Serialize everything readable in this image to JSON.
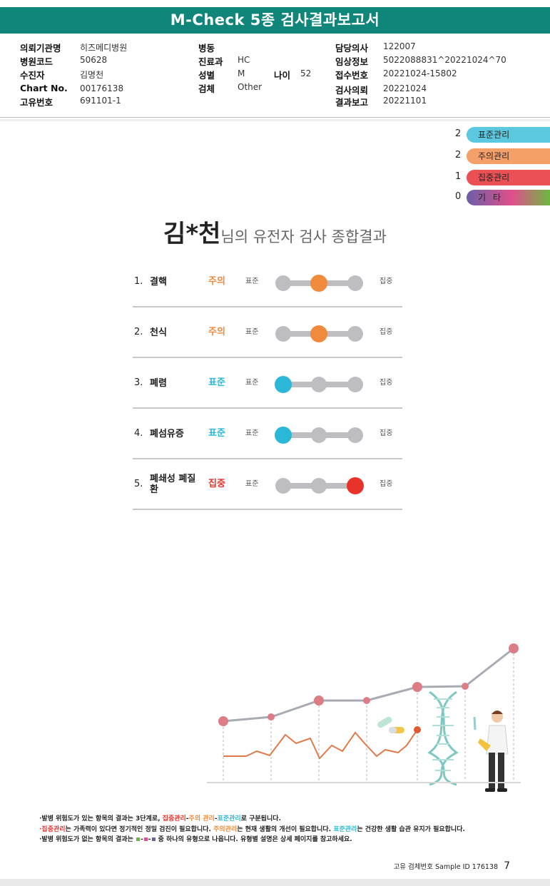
{
  "header": {
    "title": "M-Check 5종 검사결과보고서"
  },
  "info": {
    "col1": [
      {
        "label": "의뢰기관명",
        "value": "히즈메디병원"
      },
      {
        "label": "병원코드",
        "value": "50628"
      },
      {
        "label": "수진자",
        "value": "김명천"
      },
      {
        "label": "Chart No.",
        "value": "00176138"
      },
      {
        "label": "고유번호",
        "value": "691101-1"
      }
    ],
    "col2": [
      {
        "label": "병동",
        "value": ""
      },
      {
        "label": "진료과",
        "value": "HC"
      },
      {
        "label": "성별",
        "value": "M"
      },
      {
        "label": "검체",
        "value": "Other"
      }
    ],
    "age": {
      "label": "나이",
      "value": "52"
    },
    "col3": [
      {
        "label": "담당의사",
        "value": "122007"
      },
      {
        "label": "임상정보",
        "value": "5022088831^20221024^70"
      },
      {
        "label": "접수번호",
        "value": "20221024-15802"
      },
      {
        "label": "검사의뢰",
        "value": "20221024"
      },
      {
        "label": "결과보고",
        "value": "20221101"
      }
    ]
  },
  "legend": [
    {
      "count": "2",
      "label": "표준관리",
      "color": "#5bc8df"
    },
    {
      "count": "2",
      "label": "주의관리",
      "color": "#f5a068"
    },
    {
      "count": "1",
      "label": "집중관리",
      "color": "#ea5054"
    },
    {
      "count": "0",
      "label": "기타",
      "colors": [
        "#6b5ea8",
        "#e0508a",
        "#6cb83f"
      ]
    }
  ],
  "summary": {
    "name": "김*천",
    "rest": "님의 유전자 검사 종합결과"
  },
  "results": [
    {
      "num": "1.",
      "item": "결핵",
      "status": "주의",
      "level": 1
    },
    {
      "num": "2.",
      "item": "천식",
      "status": "주의",
      "level": 1
    },
    {
      "num": "3.",
      "item": "폐렴",
      "status": "표준",
      "level": 0
    },
    {
      "num": "4.",
      "item": "폐섬유증",
      "status": "표준",
      "level": 0
    },
    {
      "num": "5.",
      "item": "폐쇄성 폐질환",
      "status": "집중",
      "level": 2
    }
  ],
  "scale": {
    "low": "표준",
    "high": "집중"
  },
  "colors": {
    "standard": "#2bb8d8",
    "caution": "#f08a3c",
    "focus": "#e8332a",
    "inactive": "#bdbdc2"
  },
  "notes": {
    "l1_a": "·발병 위험도가 있는 항목의 결과는 3단계로, ",
    "l1_red": "집중관리",
    "l1_dash1": "-",
    "l1_org": "주의 관리",
    "l1_dash2": "-",
    "l1_blu": "표준관리",
    "l1_b": "로 구분됩니다.",
    "l2_red": "·집중관리",
    "l2_a": "는 가족력이 있다면 정기적인 정밀 검진이 필요합니다. ",
    "l2_org": "주의관리",
    "l2_b": "는 현재 생활의 개선이 필요합니다. ",
    "l2_blu": "표준관리",
    "l2_c": "는 건강한 생활 습관 유지가 필요합니다.",
    "l3_a": "·발병 위험도가 없는 항목의 결과는 ",
    "l3_b": " 중 하나의 유형으로 나옵니다. 유형별 설명은 상세 페이지를 참고하세요."
  },
  "footer": {
    "text": "고유 검체번호 Sample ID 176138",
    "page": "7"
  }
}
